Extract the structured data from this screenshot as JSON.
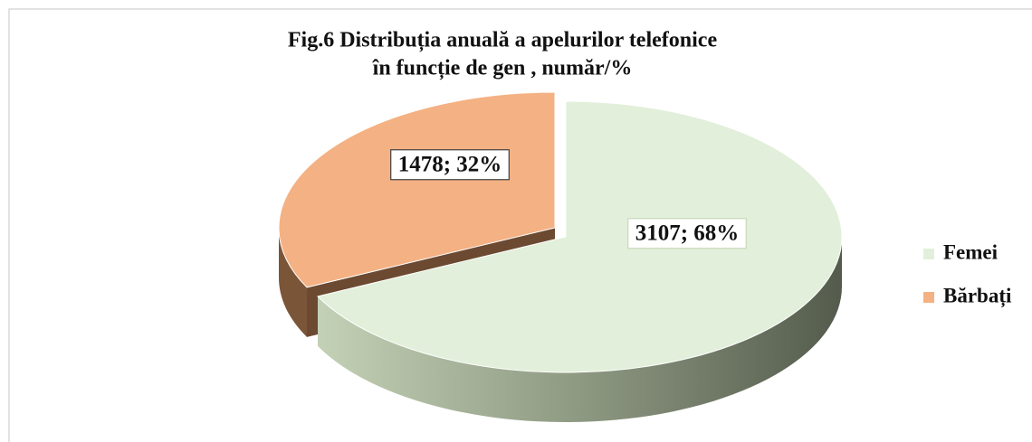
{
  "chart_data": {
    "type": "pie3d",
    "title": [
      "Fig.6 Distribuția anuală a apelurilor telefonice",
      "în funcție de gen , număr/%"
    ],
    "categories": [
      "Femei",
      "Bărbați"
    ],
    "values": [
      3107,
      1478
    ],
    "value_labels": [
      "3107; 68%",
      "1478; 32%"
    ],
    "colors": [
      "#e2efda",
      "#f4b183"
    ],
    "legend": "right"
  }
}
